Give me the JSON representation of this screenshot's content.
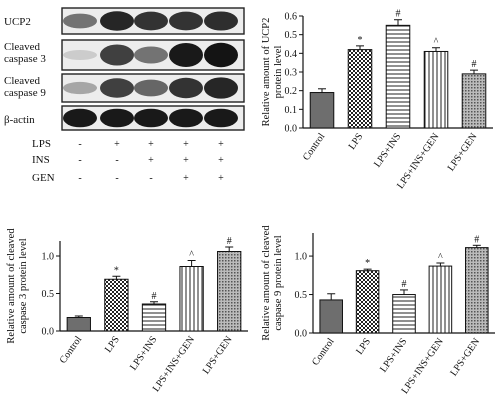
{
  "blot": {
    "bands": [
      {
        "label": "UCP2",
        "intensity": [
          0.55,
          0.85,
          0.8,
          0.8,
          0.82
        ]
      },
      {
        "label": "Cleaved\ncaspase 3",
        "intensity": [
          0.2,
          0.75,
          0.55,
          0.9,
          0.92
        ]
      },
      {
        "label": "Cleaved\ncaspase 9",
        "intensity": [
          0.35,
          0.75,
          0.6,
          0.8,
          0.85
        ]
      },
      {
        "label": "β-actin",
        "intensity": [
          0.9,
          0.9,
          0.9,
          0.9,
          0.9
        ]
      }
    ],
    "treatments": [
      {
        "label": "LPS",
        "marks": [
          "-",
          "+",
          "+",
          "+",
          "+"
        ]
      },
      {
        "label": "INS",
        "marks": [
          "-",
          "-",
          "+",
          "+",
          "+"
        ]
      },
      {
        "label": "GEN",
        "marks": [
          "-",
          "-",
          "-",
          "+",
          "+"
        ]
      }
    ]
  },
  "chart_data": [
    {
      "id": "ucp2",
      "type": "bar",
      "ylabel": "Relative amount of UCP2\nprotein level",
      "categories": [
        "Control",
        "LPS",
        "LPS+INS",
        "LPS+INS+GEN",
        "LPS+GEN"
      ],
      "values": [
        0.19,
        0.42,
        0.55,
        0.41,
        0.29
      ],
      "errors": [
        0.02,
        0.02,
        0.03,
        0.02,
        0.02
      ],
      "annotations": [
        "",
        "*",
        "#",
        "^",
        "#"
      ],
      "patterns": [
        "solid",
        "check",
        "hlines",
        "vlines",
        "dense"
      ],
      "ylim": [
        0,
        0.6
      ],
      "yticks": [
        "0.0",
        "0.1",
        "0.2",
        "0.3",
        "0.4",
        "0.5",
        "0.6"
      ]
    },
    {
      "id": "c3",
      "type": "bar",
      "ylabel": "Relative amount of cleaved\ncaspase 3 protein level",
      "categories": [
        "Control",
        "LPS",
        "LPS+INS",
        "LPS+INS+GEN",
        "LPS+GEN"
      ],
      "values": [
        0.18,
        0.69,
        0.36,
        0.86,
        1.06
      ],
      "errors": [
        0.02,
        0.04,
        0.03,
        0.08,
        0.06
      ],
      "annotations": [
        "",
        "*",
        "#",
        "^",
        "#"
      ],
      "patterns": [
        "solid",
        "check",
        "hlines",
        "vlines",
        "dense"
      ],
      "ylim": [
        0,
        1.2
      ],
      "yticks": [
        "0.0",
        "0.5",
        "1.0"
      ]
    },
    {
      "id": "c9",
      "type": "bar",
      "ylabel": "Relative amount of cleaved\ncaspase 9 protein level",
      "categories": [
        "Control",
        "LPS",
        "LPS+INS",
        "LPS+INS+GEN",
        "LPS+GEN"
      ],
      "values": [
        0.43,
        0.81,
        0.5,
        0.87,
        1.11
      ],
      "errors": [
        0.08,
        0.02,
        0.06,
        0.04,
        0.03
      ],
      "annotations": [
        "",
        "*",
        "#",
        "^",
        "#"
      ],
      "patterns": [
        "solid",
        "check",
        "hlines",
        "vlines",
        "dense"
      ],
      "ylim": [
        0,
        1.3
      ],
      "yticks": [
        "0.0",
        "0.5",
        "1.0"
      ]
    }
  ]
}
